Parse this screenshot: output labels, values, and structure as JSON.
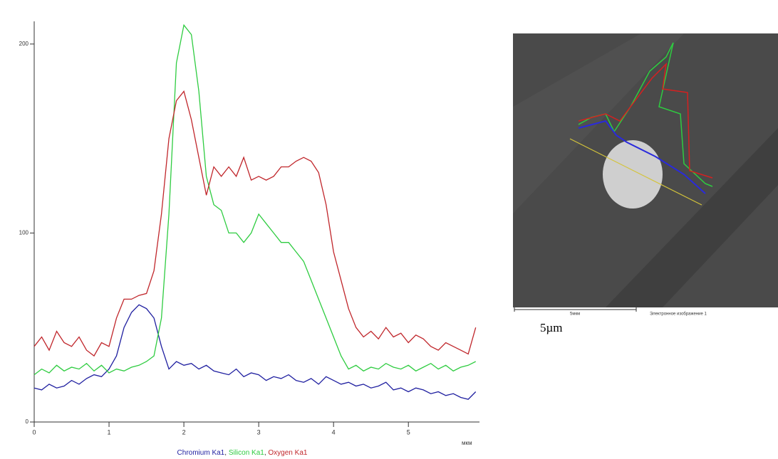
{
  "chart_data": {
    "type": "line",
    "x_label": "мкм",
    "legend_separator": ", ",
    "x": [
      0,
      0.1,
      0.2,
      0.3,
      0.4,
      0.5,
      0.6,
      0.7,
      0.8,
      0.9,
      1,
      1.1,
      1.2,
      1.3,
      1.4,
      1.5,
      1.6,
      1.7,
      1.8,
      1.9,
      2,
      2.1,
      2.2,
      2.3,
      2.4,
      2.5,
      2.6,
      2.7,
      2.8,
      2.9,
      3,
      3.1,
      3.2,
      3.3,
      3.4,
      3.5,
      3.6,
      3.7,
      3.8,
      3.9,
      4,
      4.1,
      4.2,
      4.3,
      4.4,
      4.5,
      4.6,
      4.7,
      4.8,
      4.9,
      5,
      5.1,
      5.2,
      5.3,
      5.4,
      5.5,
      5.6,
      5.7,
      5.8,
      5.9
    ],
    "series": [
      {
        "name": "Chromium Ka1",
        "color": "#1f1fa0",
        "values": [
          18,
          17,
          20,
          18,
          19,
          22,
          20,
          23,
          25,
          24,
          28,
          35,
          50,
          58,
          62,
          60,
          55,
          40,
          28,
          32,
          30,
          31,
          28,
          30,
          27,
          26,
          25,
          28,
          24,
          26,
          25,
          22,
          24,
          23,
          25,
          22,
          21,
          23,
          20,
          24,
          22,
          20,
          21,
          19,
          20,
          18,
          19,
          21,
          17,
          18,
          16,
          18,
          17,
          15,
          16,
          14,
          15,
          13,
          12,
          16
        ]
      },
      {
        "name": "Silicon Ka1",
        "color": "#2ecc40",
        "values": [
          25,
          28,
          26,
          30,
          27,
          29,
          28,
          31,
          27,
          30,
          26,
          28,
          27,
          29,
          30,
          32,
          35,
          55,
          110,
          190,
          210,
          205,
          175,
          130,
          115,
          112,
          100,
          100,
          95,
          100,
          110,
          105,
          100,
          95,
          95,
          90,
          85,
          75,
          65,
          55,
          45,
          35,
          28,
          30,
          27,
          29,
          28,
          31,
          29,
          28,
          30,
          27,
          29,
          31,
          28,
          30,
          27,
          29,
          30,
          32
        ]
      },
      {
        "name": "Oxygen Ka1",
        "color": "#c0262b",
        "values": [
          40,
          45,
          38,
          48,
          42,
          40,
          45,
          38,
          35,
          42,
          40,
          55,
          65,
          65,
          67,
          68,
          80,
          110,
          150,
          170,
          175,
          160,
          140,
          120,
          135,
          130,
          135,
          130,
          140,
          128,
          130,
          128,
          130,
          135,
          135,
          138,
          140,
          138,
          132,
          115,
          90,
          75,
          60,
          50,
          45,
          48,
          44,
          50,
          45,
          47,
          42,
          46,
          44,
          40,
          38,
          42,
          40,
          38,
          36,
          50
        ]
      }
    ],
    "xlim": [
      0,
      5.95
    ],
    "xticks": [
      0,
      1,
      2,
      3,
      4,
      5
    ],
    "ylim": [
      0,
      212
    ],
    "yticks": [
      0,
      100,
      200
    ]
  },
  "image": {
    "scale_label": "5мкм",
    "caption": "Электронное изображение 1",
    "scale_note": "5µm"
  }
}
